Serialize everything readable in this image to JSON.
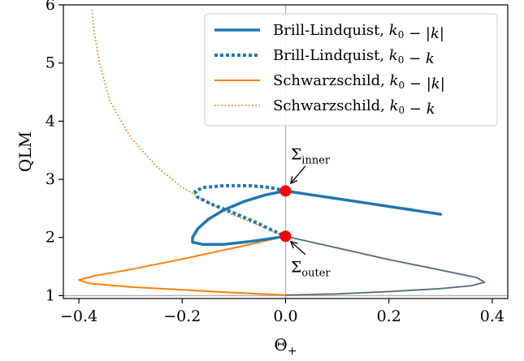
{
  "chart_data": {
    "type": "line",
    "title": "",
    "xlabel": "Θ",
    "xlabel_sub": "+",
    "ylabel": "QLM",
    "xlim": [
      -0.43,
      0.43
    ],
    "ylim": [
      0.95,
      6.0
    ],
    "xticks": [
      -0.4,
      -0.2,
      0.0,
      0.2,
      0.4
    ],
    "xtick_labels": [
      "−0.4",
      "−0.2",
      "0.0",
      "0.2",
      "0.4"
    ],
    "yticks": [
      1,
      2,
      3,
      4,
      5,
      6
    ],
    "ytick_labels": [
      "1",
      "2",
      "3",
      "4",
      "5",
      "6"
    ],
    "grid": false,
    "reference_lines": {
      "x": 0.0,
      "y": 1.0,
      "color": "#b0b0b0"
    },
    "legend_position": "top-right",
    "series": [
      {
        "name": "Brill-Lindquist, k0 − |k|",
        "legend_parts": [
          [
            "Brill-Lindquist, ",
            "normal"
          ],
          [
            "k",
            "italic"
          ],
          [
            "0",
            "sub"
          ],
          [
            " − |",
            "normal"
          ],
          [
            "k",
            "italic"
          ],
          [
            "|",
            "normal"
          ]
        ],
        "color": "#1f77b4",
        "style": "solid",
        "width": 3.5,
        "points": [
          [
            0.0,
            2.8
          ],
          [
            0.05,
            2.733
          ],
          [
            0.1,
            2.667
          ],
          [
            0.15,
            2.6
          ],
          [
            0.2,
            2.533
          ],
          [
            0.25,
            2.467
          ],
          [
            0.3,
            2.4
          ]
        ]
      },
      {
        "name": "Brill-Lindquist, k0 − k",
        "legend_parts": [
          [
            "Brill-Lindquist, ",
            "normal"
          ],
          [
            "k",
            "italic"
          ],
          [
            "0",
            "sub"
          ],
          [
            " − ",
            "normal"
          ],
          [
            "k",
            "italic"
          ]
        ],
        "color": "#1f77b4",
        "style": "dotted",
        "width": 4,
        "points": [
          [
            0.0,
            2.8
          ],
          [
            -0.03,
            2.86
          ],
          [
            -0.07,
            2.89
          ],
          [
            -0.12,
            2.89
          ],
          [
            -0.16,
            2.86
          ],
          [
            -0.175,
            2.79
          ],
          [
            -0.17,
            2.69
          ],
          [
            -0.14,
            2.56
          ],
          [
            -0.1,
            2.42
          ],
          [
            -0.06,
            2.27
          ],
          [
            -0.02,
            2.1
          ],
          [
            0.0,
            2.02
          ]
        ]
      },
      {
        "name": "Schwarzschild, k0 − |k|",
        "legend_parts": [
          [
            "Schwarzschild, ",
            "normal"
          ],
          [
            "k",
            "italic"
          ],
          [
            "0",
            "sub"
          ],
          [
            " − |",
            "normal"
          ],
          [
            "k",
            "italic"
          ],
          [
            "|",
            "normal"
          ]
        ],
        "color": "#ff7f0e",
        "style": "solid",
        "width": 2,
        "points": [
          [
            0.0,
            2.02
          ],
          [
            -0.1,
            1.82
          ],
          [
            -0.2,
            1.63
          ],
          [
            -0.3,
            1.45
          ],
          [
            -0.37,
            1.34
          ],
          [
            -0.4,
            1.27
          ],
          [
            -0.38,
            1.21
          ],
          [
            -0.3,
            1.15
          ],
          [
            -0.2,
            1.1
          ],
          [
            -0.1,
            1.05
          ],
          [
            0.0,
            1.01
          ],
          [
            0.1,
            1.03
          ],
          [
            0.2,
            1.07
          ],
          [
            0.3,
            1.12
          ],
          [
            0.36,
            1.17
          ],
          [
            0.385,
            1.23
          ],
          [
            0.37,
            1.31
          ],
          [
            0.3,
            1.44
          ],
          [
            0.2,
            1.62
          ],
          [
            0.1,
            1.82
          ],
          [
            0.0,
            2.02
          ]
        ]
      },
      {
        "name": "Schwarzschild, k0 − k",
        "legend_parts": [
          [
            "Schwarzschild, ",
            "normal"
          ],
          [
            "k",
            "italic"
          ],
          [
            "0",
            "sub"
          ],
          [
            " − ",
            "normal"
          ],
          [
            "k",
            "italic"
          ]
        ],
        "color": "#ff7f0e",
        "style": "dotted",
        "width": 1.8,
        "points": [
          [
            0.0,
            2.02
          ],
          [
            -0.05,
            2.2
          ],
          [
            -0.1,
            2.38
          ],
          [
            -0.15,
            2.6
          ],
          [
            -0.2,
            2.86
          ],
          [
            -0.25,
            3.22
          ],
          [
            -0.3,
            3.72
          ],
          [
            -0.34,
            4.35
          ],
          [
            -0.36,
            5.0
          ],
          [
            -0.37,
            5.5
          ],
          [
            -0.375,
            5.95
          ]
        ]
      }
    ],
    "extra_curves": [
      {
        "color": "#1f77b4",
        "style": "solid",
        "width": 3.5,
        "points": [
          [
            0.0,
            2.8
          ],
          [
            -0.04,
            2.73
          ],
          [
            -0.08,
            2.62
          ],
          [
            -0.12,
            2.47
          ],
          [
            -0.15,
            2.31
          ],
          [
            -0.17,
            2.15
          ],
          [
            -0.18,
            2.0
          ],
          [
            -0.18,
            1.92
          ],
          [
            -0.16,
            1.88
          ],
          [
            -0.12,
            1.88
          ],
          [
            -0.07,
            1.93
          ],
          [
            -0.03,
            1.98
          ],
          [
            0.0,
            2.02
          ]
        ]
      },
      {
        "color": "#1f77b4",
        "style": "solid",
        "width": 1.4,
        "points": [
          [
            0.0,
            2.02
          ],
          [
            0.1,
            1.82
          ],
          [
            0.2,
            1.62
          ],
          [
            0.3,
            1.44
          ],
          [
            0.37,
            1.31
          ],
          [
            0.385,
            1.23
          ],
          [
            0.36,
            1.17
          ],
          [
            0.3,
            1.12
          ],
          [
            0.2,
            1.07
          ],
          [
            0.1,
            1.03
          ],
          [
            0.0,
            1.01
          ]
        ]
      }
    ],
    "markers": [
      {
        "x": 0.0,
        "y": 2.8,
        "color": "#ff0000"
      },
      {
        "x": 0.0,
        "y": 2.02,
        "color": "#ff0000"
      }
    ],
    "annotations": [
      {
        "label": "Σ",
        "sub": "inner",
        "text_x": 0.01,
        "text_y": 3.34,
        "arrow_to": [
          0.01,
          2.93
        ]
      },
      {
        "label": "Σ",
        "sub": "outer",
        "text_x": 0.01,
        "text_y": 1.4,
        "arrow_to": [
          0.01,
          1.93
        ]
      }
    ]
  }
}
